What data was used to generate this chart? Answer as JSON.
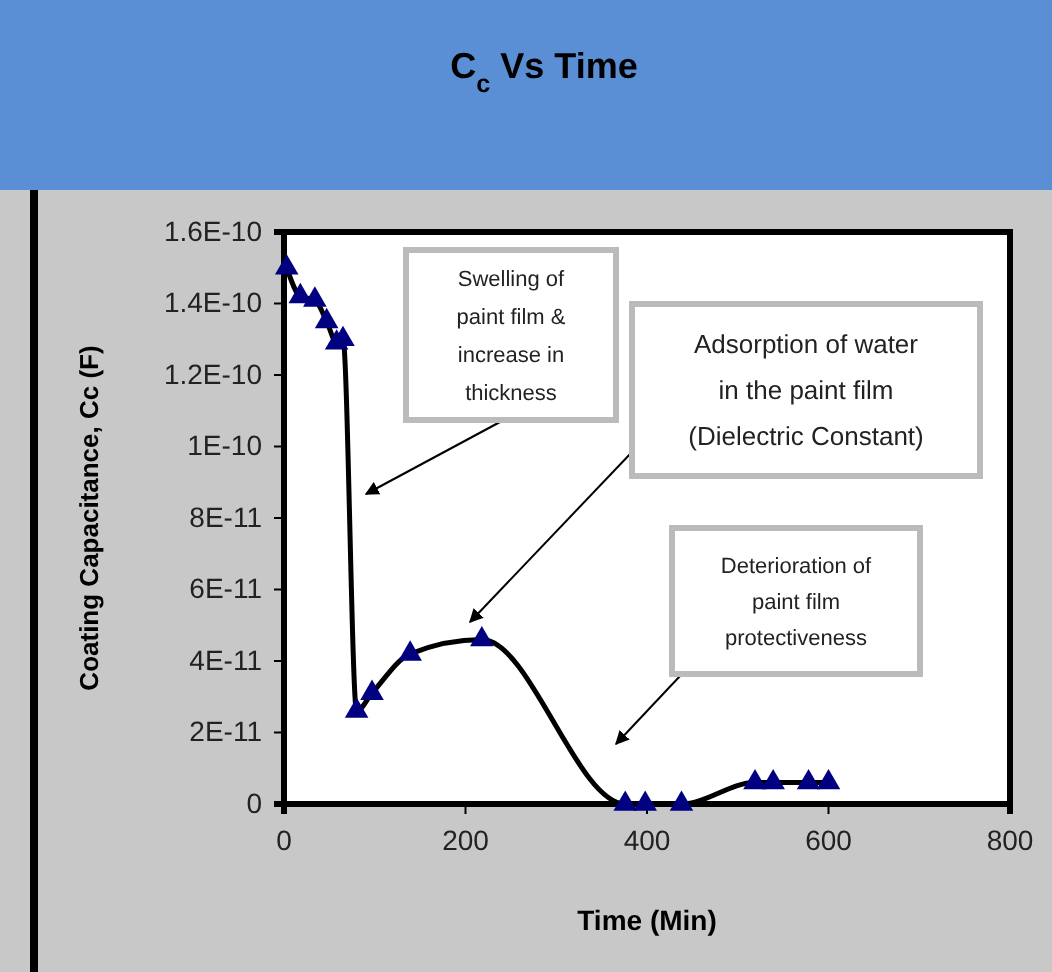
{
  "chart_data": {
    "type": "line",
    "title": "C$_{c}$ Vs Time",
    "xlabel": "Time (Min)",
    "ylabel": "Coating Capacitance, Cc (F)",
    "x": [
      3,
      18,
      34,
      47,
      58,
      65,
      80,
      97,
      139,
      218,
      376,
      398,
      438,
      519,
      539,
      578,
      600
    ],
    "series": [
      {
        "color": "#000080",
        "values": [
          1.5e-10,
          1.42e-10,
          1.41e-10,
          1.35e-10,
          1.29e-10,
          1.3e-10,
          2.6e-11,
          3.1e-11,
          4.2e-11,
          4.6e-11,
          0,
          0,
          0,
          6e-12,
          6e-12,
          6e-12,
          6e-12
        ]
      }
    ],
    "marker": "triangle",
    "xlim": [
      0,
      800
    ],
    "xticks": [
      0,
      200,
      400,
      600,
      800
    ],
    "ylim": [
      0,
      1.6e-10
    ],
    "yticks": [
      {
        "value": 0,
        "label": "0"
      },
      {
        "value": 2e-11,
        "label": "2E-11"
      },
      {
        "value": 4e-11,
        "label": "4E-11"
      },
      {
        "value": 6e-11,
        "label": "6E-11"
      },
      {
        "value": 8e-11,
        "label": "8E-11"
      },
      {
        "value": 1e-10,
        "label": "1E-10"
      },
      {
        "value": 1.2e-10,
        "label": "1.2E-10"
      },
      {
        "value": 1.4e-10,
        "label": "1.4E-10"
      },
      {
        "value": 1.6e-10,
        "label": "1.6E-10"
      }
    ],
    "annotations": [
      "Swelling of paint film & increase in thickness",
      "Adsorption of water in the paint film (Dielectric Constant)",
      "Deterioration of paint film protectiveness"
    ]
  }
}
